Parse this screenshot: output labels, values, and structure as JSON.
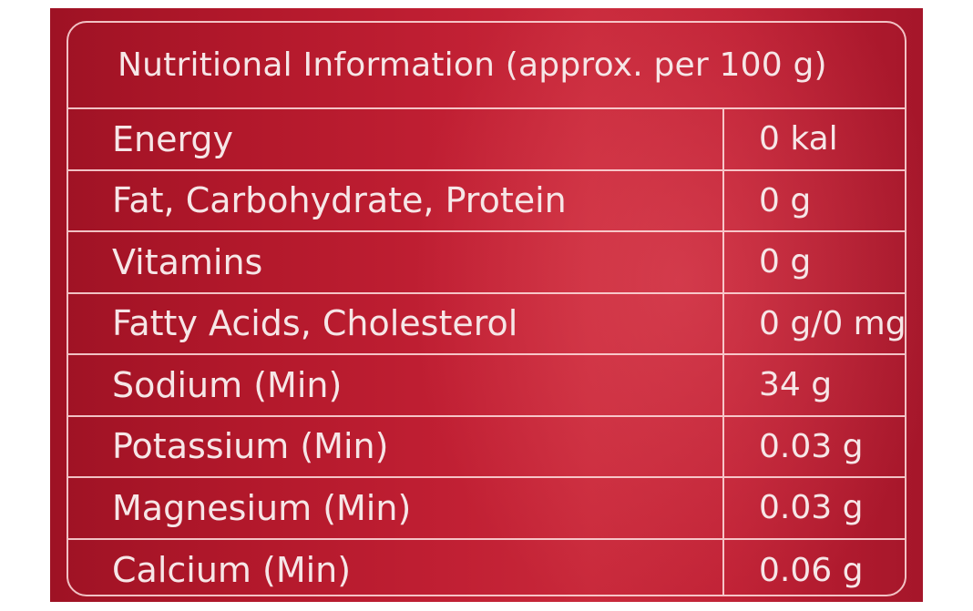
{
  "label": {
    "title": "Nutritional Information (approx. per 100 g)",
    "rows": [
      {
        "name": "Energy",
        "value": "0 kal"
      },
      {
        "name": "Fat, Carbohydrate, Protein",
        "value": "0 g"
      },
      {
        "name": "Vitamins",
        "value": "0 g"
      },
      {
        "name": "Fatty Acids, Cholesterol",
        "value": "0 g/0 mg"
      },
      {
        "name": "Sodium (Min)",
        "value": "34 g"
      },
      {
        "name": "Potassium (Min)",
        "value": "0.03 g"
      },
      {
        "name": "Magnesium (Min)",
        "value": "0.03 g"
      },
      {
        "name": "Calcium (Min)",
        "value": "0.06 g"
      }
    ]
  },
  "colors": {
    "background": "#c01f33",
    "text": "#f6e6e7",
    "lines": "#ffe1e1"
  }
}
